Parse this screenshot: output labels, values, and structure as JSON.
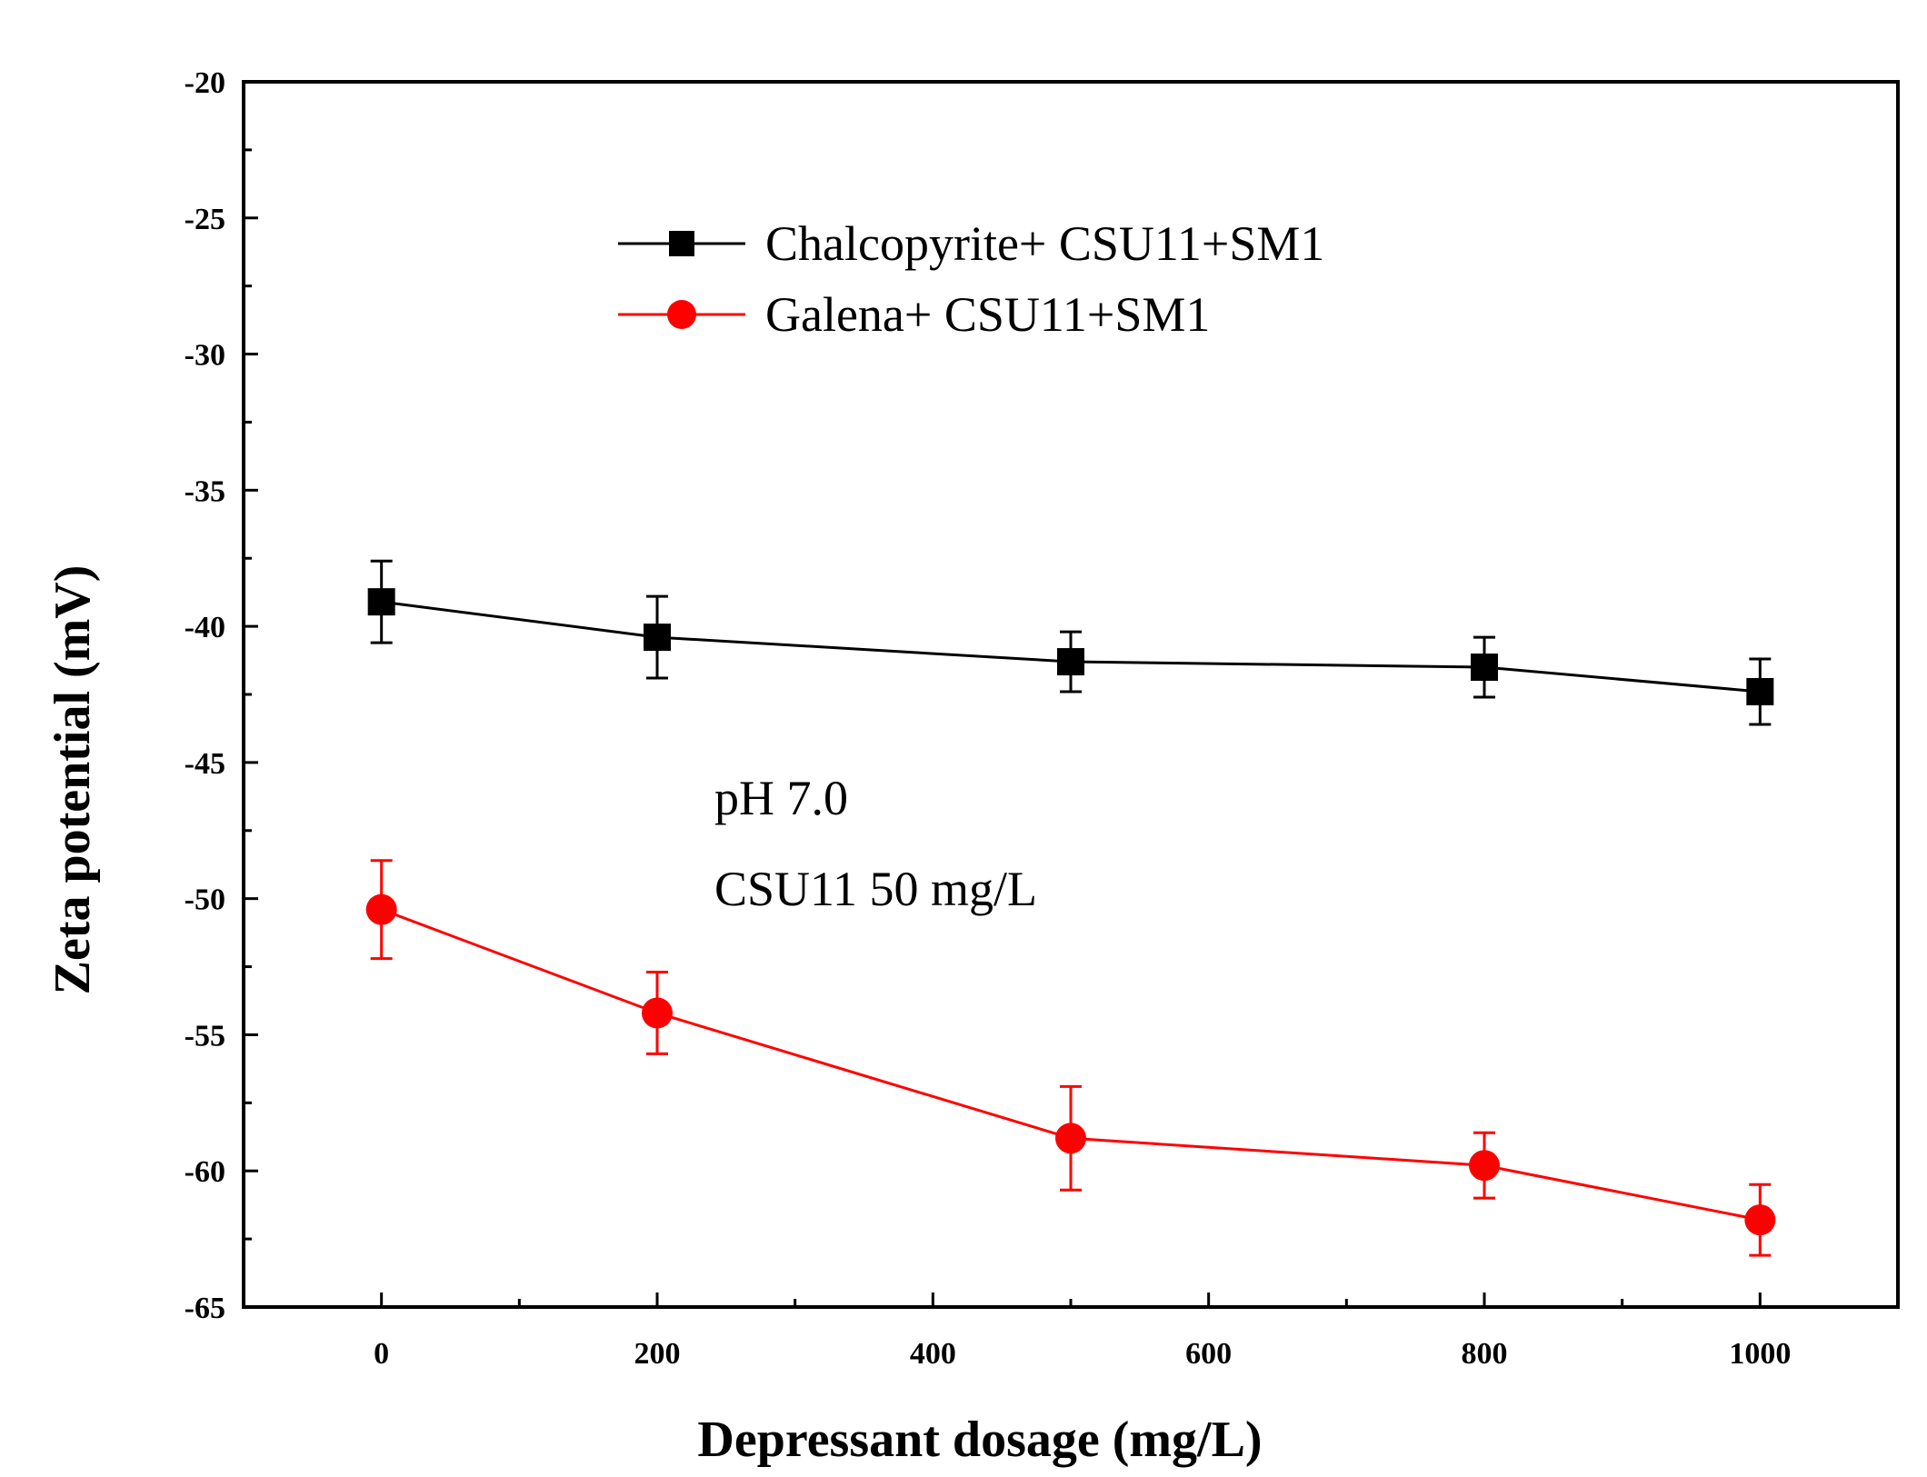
{
  "chart_data": {
    "type": "line",
    "xlabel": "Depressant dosage (mg/L)",
    "ylabel": "Zeta potential (mV)",
    "xlim": [
      -100,
      1100
    ],
    "ylim": [
      -65,
      -20
    ],
    "x_ticks": [
      0,
      200,
      400,
      600,
      800,
      1000
    ],
    "y_ticks": [
      -20,
      -25,
      -30,
      -35,
      -40,
      -45,
      -50,
      -55,
      -60,
      -65
    ],
    "grid": false,
    "legend_position": "top-center",
    "annotations": [
      "pH 7.0",
      "CSU11 50 mg/L"
    ],
    "series": [
      {
        "name": "Chalcopyrite+ CSU11+SM1",
        "color": "#000000",
        "marker": "square",
        "x": [
          0,
          200,
          500,
          800,
          1000
        ],
        "y": [
          -39.1,
          -40.4,
          -41.3,
          -41.5,
          -42.4
        ],
        "err": [
          1.5,
          1.5,
          1.1,
          1.1,
          1.2
        ]
      },
      {
        "name": "Galena+ CSU11+SM1",
        "color": "#ff0000",
        "marker": "circle",
        "x": [
          0,
          200,
          500,
          800,
          1000
        ],
        "y": [
          -50.4,
          -54.2,
          -58.8,
          -59.8,
          -61.8
        ],
        "err": [
          1.8,
          1.5,
          1.9,
          1.2,
          1.3
        ]
      }
    ]
  }
}
